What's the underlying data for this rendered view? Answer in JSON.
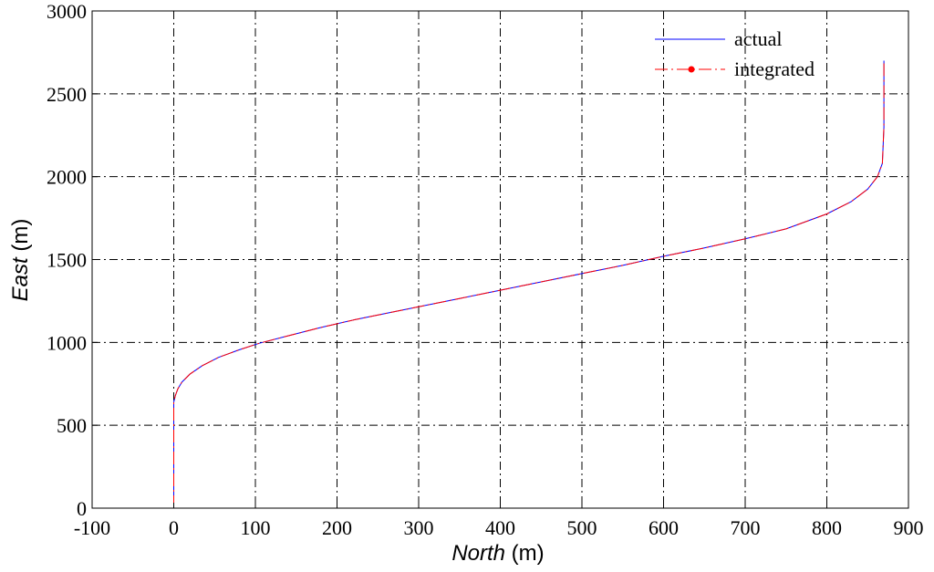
{
  "chart_data": {
    "type": "line",
    "xlabel_italic": "North",
    "xlabel_unit": " (m)",
    "ylabel_italic": "East",
    "ylabel_unit": " (m)",
    "xlim": [
      -100,
      900
    ],
    "ylim": [
      0,
      3000
    ],
    "xticks": [
      -100,
      0,
      100,
      200,
      300,
      400,
      500,
      600,
      700,
      800,
      900
    ],
    "yticks": [
      0,
      500,
      1000,
      1500,
      2000,
      2500,
      3000
    ],
    "grid": true,
    "legend_position": "top-right",
    "series": [
      {
        "name": "actual",
        "color": "#0000ff",
        "style": "solid",
        "x": [
          0,
          0,
          0,
          2,
          5,
          10,
          20,
          35,
          55,
          80,
          105,
          140,
          180,
          220,
          260,
          300,
          350,
          400,
          450,
          500,
          550,
          600,
          650,
          700,
          750,
          800,
          830,
          850,
          862,
          868,
          870,
          870
        ],
        "y": [
          0,
          500,
          640,
          680,
          720,
          760,
          810,
          860,
          910,
          955,
          995,
          1040,
          1090,
          1135,
          1175,
          1215,
          1265,
          1315,
          1365,
          1415,
          1465,
          1520,
          1570,
          1625,
          1685,
          1775,
          1850,
          1925,
          2000,
          2080,
          2300,
          2700
        ]
      },
      {
        "name": "integrated",
        "color": "#ff0000",
        "style": "dash-dot",
        "x": [
          0,
          0,
          0,
          2,
          5,
          10,
          20,
          35,
          55,
          80,
          105,
          140,
          180,
          220,
          260,
          300,
          350,
          400,
          450,
          500,
          550,
          600,
          650,
          700,
          750,
          800,
          830,
          850,
          862,
          868,
          870,
          870
        ],
        "y": [
          0,
          500,
          640,
          680,
          720,
          760,
          810,
          860,
          910,
          955,
          995,
          1040,
          1090,
          1135,
          1175,
          1215,
          1265,
          1315,
          1365,
          1415,
          1465,
          1520,
          1570,
          1625,
          1685,
          1775,
          1850,
          1925,
          2000,
          2080,
          2300,
          2700
        ]
      }
    ]
  }
}
